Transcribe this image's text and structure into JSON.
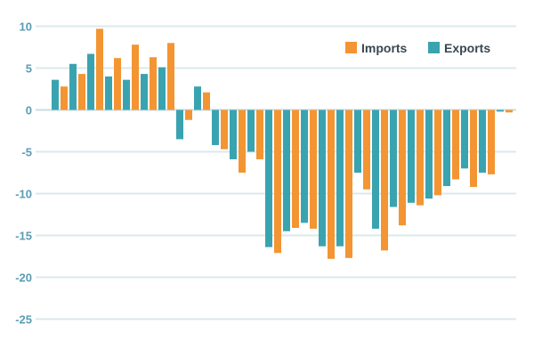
{
  "chart_data": {
    "type": "bar",
    "title": "",
    "xlabel": "",
    "ylabel": "",
    "ylim": [
      -28,
      11
    ],
    "yticks": [
      10,
      5,
      0,
      -5,
      -10,
      -15,
      -20,
      -25
    ],
    "grid": true,
    "legend_placement": "top-right",
    "series": [
      {
        "name": "Exports",
        "color": "#3aa3b0",
        "values": [
          3.6,
          5.5,
          6.7,
          4.0,
          3.6,
          4.3,
          5.1,
          -3.5,
          2.8,
          -4.2,
          -5.9,
          -5.0,
          -16.4,
          -14.5,
          -13.5,
          -16.3,
          -16.3,
          -7.5,
          -14.2,
          -11.6,
          -11.1,
          -10.6,
          -9.1,
          -7.0,
          -7.5,
          -0.2
        ]
      },
      {
        "name": "Imports",
        "color": "#f39533",
        "values": [
          2.8,
          4.3,
          9.7,
          6.2,
          7.8,
          6.3,
          8.0,
          -1.2,
          2.1,
          -4.7,
          -7.5,
          -5.9,
          -17.1,
          -14.1,
          -14.2,
          -17.8,
          -17.7,
          -9.5,
          -16.8,
          -13.8,
          -11.4,
          -10.2,
          -8.3,
          -9.2,
          -7.7,
          -0.3
        ]
      }
    ],
    "legend_order": [
      "Imports",
      "Exports"
    ]
  }
}
